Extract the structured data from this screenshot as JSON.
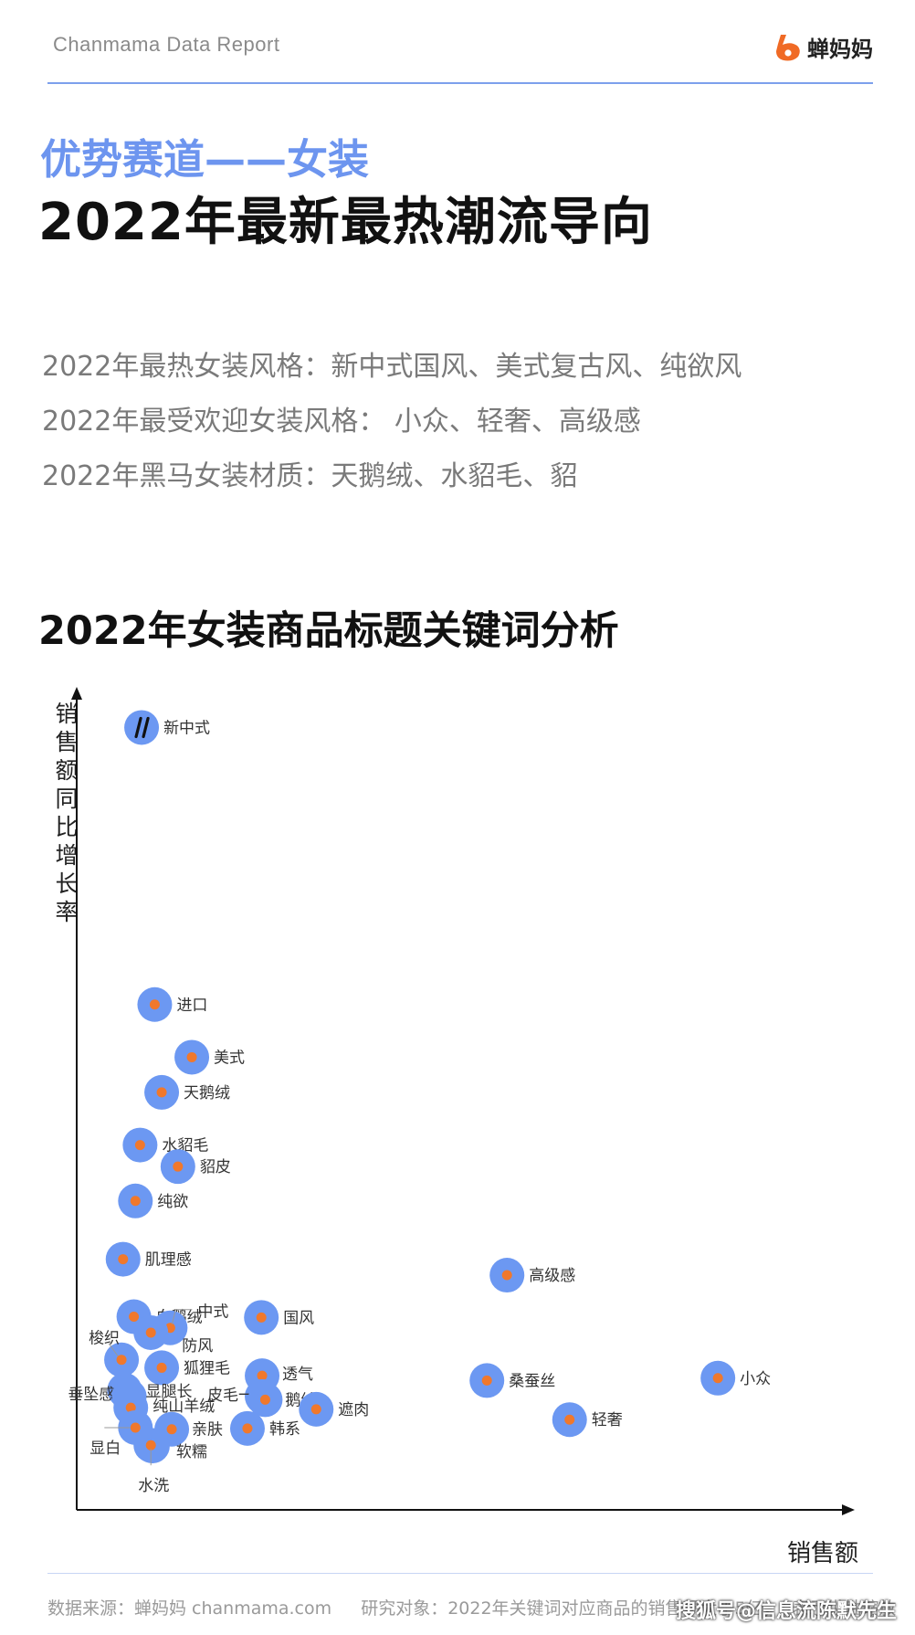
{
  "header": {
    "brand": "Chanmama Data Report",
    "logo_text": "蝉妈妈"
  },
  "section_label": "优势赛道——女装",
  "headline": "2022年最新最热潮流导向",
  "summary": [
    "2022年最热女装风格：新中式国风、美式复古风、纯欲风",
    "2022年最受欢迎女装风格：  小众、轻奢、高级感",
    "2022年黑马女装材质：天鹅绒、水貂毛、貂"
  ],
  "chart_title": "2022年女装商品标题关键词分析",
  "colors": {
    "accent": "#6d95ef",
    "bubble": "#6c98f2",
    "dot": "#f0782c",
    "axis": "#111111"
  },
  "chart_data": {
    "type": "scatter",
    "xlabel": "销售额",
    "ylabel": "销售额同比增长率",
    "xlim": [
      0,
      100
    ],
    "ylim": [
      0,
      100
    ],
    "points": [
      {
        "label": "新中式",
        "x": 8.4,
        "y": 98.0
      },
      {
        "label": "进口",
        "x": 10.1,
        "y": 63.3
      },
      {
        "label": "美式",
        "x": 14.9,
        "y": 56.7
      },
      {
        "label": "天鹅绒",
        "x": 11.0,
        "y": 52.3
      },
      {
        "label": "水貂毛",
        "x": 8.2,
        "y": 45.7
      },
      {
        "label": "貂皮",
        "x": 13.1,
        "y": 43.0
      },
      {
        "label": "纯欲",
        "x": 7.6,
        "y": 38.7
      },
      {
        "label": "肌理感",
        "x": 6.0,
        "y": 31.4
      },
      {
        "label": "高级感",
        "x": 55.7,
        "y": 29.4
      },
      {
        "label": "白鹅绒",
        "x": 7.4,
        "y": 24.2
      },
      {
        "label": "国风",
        "x": 23.9,
        "y": 24.1
      },
      {
        "label": "中式",
        "x": 12.1,
        "y": 22.8
      },
      {
        "label": "防风",
        "x": 9.6,
        "y": 22.2
      },
      {
        "label": "梭织",
        "x": 5.8,
        "y": 18.8
      },
      {
        "label": "狐狸毛",
        "x": 11.0,
        "y": 17.8
      },
      {
        "label": "透气",
        "x": 24.0,
        "y": 16.8
      },
      {
        "label": "桑蚕丝",
        "x": 53.1,
        "y": 16.2
      },
      {
        "label": "小众",
        "x": 83.0,
        "y": 16.5
      },
      {
        "label": "垂坠感",
        "x": 6.2,
        "y": 15.0
      },
      {
        "label": "显腿长",
        "x": 6.8,
        "y": 14.2
      },
      {
        "label": "皮毛一体",
        "x": 24.0,
        "y": 14.2
      },
      {
        "label": "鹅绒",
        "x": 24.4,
        "y": 13.8
      },
      {
        "label": "遮肉",
        "x": 31.0,
        "y": 12.6
      },
      {
        "label": "纯山羊绒",
        "x": 7.0,
        "y": 12.8
      },
      {
        "label": "轻奢",
        "x": 63.8,
        "y": 11.3
      },
      {
        "label": "亲肤",
        "x": 12.3,
        "y": 10.1
      },
      {
        "label": "韩系",
        "x": 22.1,
        "y": 10.2
      },
      {
        "label": "显白",
        "x": 7.6,
        "y": 10.3
      },
      {
        "label": "软糯",
        "x": 9.8,
        "y": 8.0
      },
      {
        "label": "水洗",
        "x": 9.6,
        "y": 8.1
      }
    ]
  },
  "footer": {
    "source": "数据来源：蝉妈妈 chanmama.com",
    "scope": "研究对象：2022年关键词对应商品的销售额大于5亿，//表示纵轴缩放"
  },
  "watermark": "搜狐号@信息流陈默先生"
}
